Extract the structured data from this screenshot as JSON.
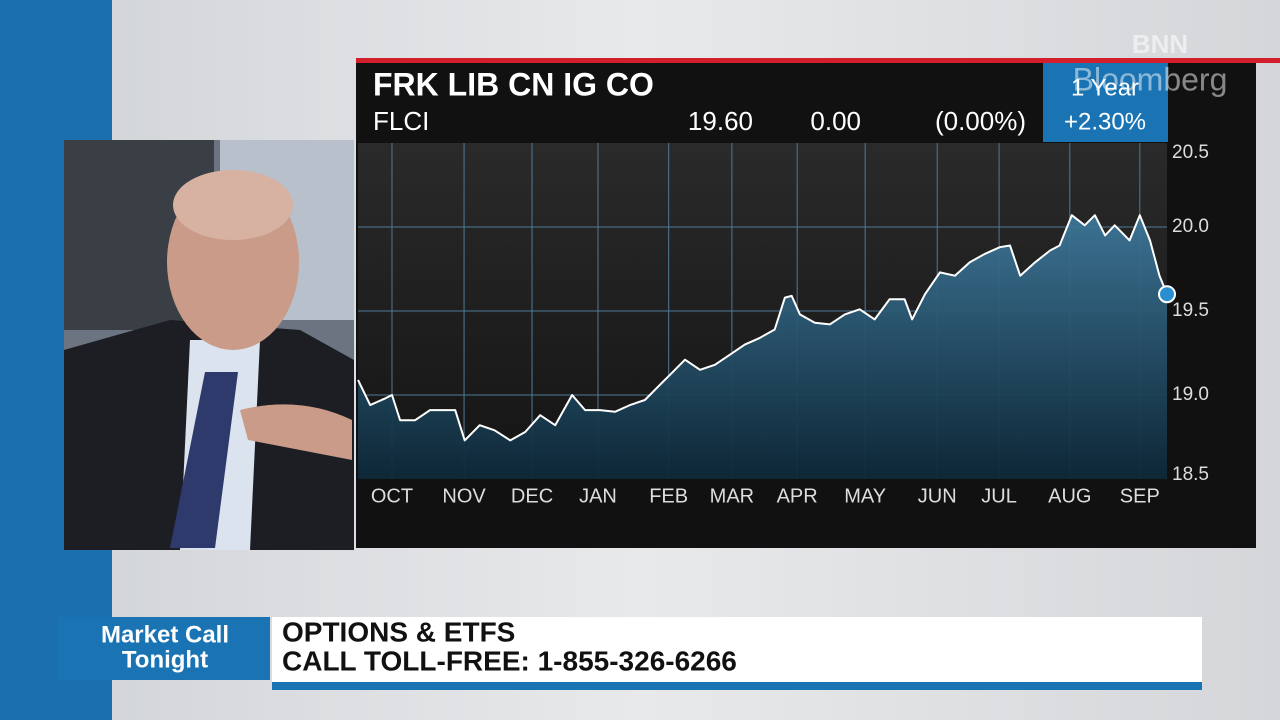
{
  "chart_data": {
    "type": "area",
    "title": "FRK LIB CN IG CO",
    "ticker": "FLCI",
    "quote": {
      "last": "19.60",
      "change": "0.00",
      "change_percent": "(0.00%)"
    },
    "period": "1 Year",
    "period_change": "+2.30%",
    "color": "#ffffff",
    "fill": "#2f6d8e",
    "grid": true,
    "x": [
      0,
      0.18,
      0.4,
      0.5,
      0.62,
      0.84,
      1.06,
      1.43,
      1.57,
      1.79,
      2.01,
      2.24,
      2.46,
      2.68,
      2.9,
      3.15,
      3.34,
      3.56,
      3.78,
      4.0,
      4.22,
      4.44,
      4.59,
      4.81,
      5.03,
      5.25,
      5.47,
      5.69,
      5.91,
      6.13,
      6.28,
      6.38,
      6.5,
      6.72,
      6.94,
      7.16,
      7.38,
      7.6,
      7.82,
      8.04,
      8.15,
      8.34,
      8.56,
      8.78,
      9.0,
      9.22,
      9.44,
      9.59,
      9.74,
      9.96,
      10.18,
      10.32,
      10.5,
      10.69,
      10.84,
      10.99,
      11.13,
      11.35,
      11.5,
      11.65,
      11.79,
      11.9
    ],
    "values": [
      19.09,
      18.94,
      18.98,
      19.0,
      18.85,
      18.85,
      18.91,
      18.91,
      18.73,
      18.82,
      18.79,
      18.73,
      18.78,
      18.88,
      18.82,
      19.0,
      18.91,
      18.91,
      18.9,
      18.94,
      18.97,
      19.06,
      19.12,
      19.21,
      19.15,
      19.18,
      19.24,
      19.3,
      19.34,
      19.39,
      19.58,
      19.59,
      19.48,
      19.43,
      19.42,
      19.48,
      19.51,
      19.45,
      19.57,
      19.57,
      19.45,
      19.6,
      19.73,
      19.71,
      19.79,
      19.84,
      19.88,
      19.89,
      19.71,
      19.79,
      19.86,
      19.89,
      20.07,
      20.01,
      20.07,
      19.95,
      20.01,
      19.92,
      20.07,
      19.92,
      19.71,
      19.6
    ],
    "xlim": [
      0,
      11.9
    ],
    "xticks": [
      {
        "value": 0.5,
        "label": "OCT"
      },
      {
        "value": 1.56,
        "label": "NOV"
      },
      {
        "value": 2.56,
        "label": "DEC"
      },
      {
        "value": 3.53,
        "label": "JAN"
      },
      {
        "value": 4.57,
        "label": "FEB"
      },
      {
        "value": 5.5,
        "label": "MAR"
      },
      {
        "value": 6.46,
        "label": "APR"
      },
      {
        "value": 7.46,
        "label": "MAY"
      },
      {
        "value": 8.52,
        "label": "JUN"
      },
      {
        "value": 9.43,
        "label": "JUL"
      },
      {
        "value": 10.47,
        "label": "AUG"
      },
      {
        "value": 11.5,
        "label": "SEP"
      }
    ],
    "ylim": [
      18.5,
      20.5
    ],
    "yticks": [
      20.5,
      {
        "value": 20,
        "label": "20.0"
      },
      19.5,
      {
        "value": 19,
        "label": "19.0"
      },
      18.5
    ]
  },
  "logo": {
    "line1": "BNN",
    "line2": "Bloomberg"
  },
  "lower_third": {
    "show_line1": "Market Call",
    "show_line2": "Tonight",
    "line1": "OPTIONS & ETFS",
    "line2": "CALL TOLL-FREE: 1-855-326-6266"
  }
}
